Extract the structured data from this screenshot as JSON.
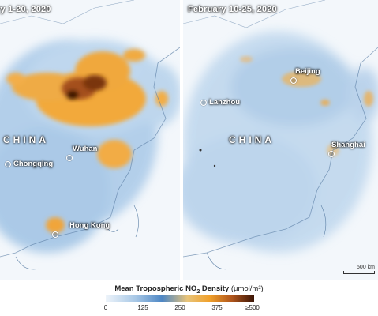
{
  "panels": {
    "left": {
      "title": "ry 1-20, 2020"
    },
    "right": {
      "title": "February 10-25, 2020"
    }
  },
  "labels": {
    "country": "CHINA",
    "left_cities": [
      "Chongqing",
      "Wuhan",
      "Hong Kong"
    ],
    "right_cities": [
      "Beijing",
      "Lanzhou",
      "Shanghai"
    ]
  },
  "scale": {
    "label": "500 km"
  },
  "legend": {
    "title_text": "Mean Tropospheric NO",
    "title_subscript": "2",
    "title_suffix": " Density ",
    "units": "(μmol/m²)",
    "ticks": [
      "0",
      "125",
      "250",
      "375",
      "≥500"
    ],
    "colors": {
      "low": "#eef4fa",
      "mid_blue": "#4d86c4",
      "orange": "#f0a02a",
      "high": "#3a1406"
    }
  }
}
